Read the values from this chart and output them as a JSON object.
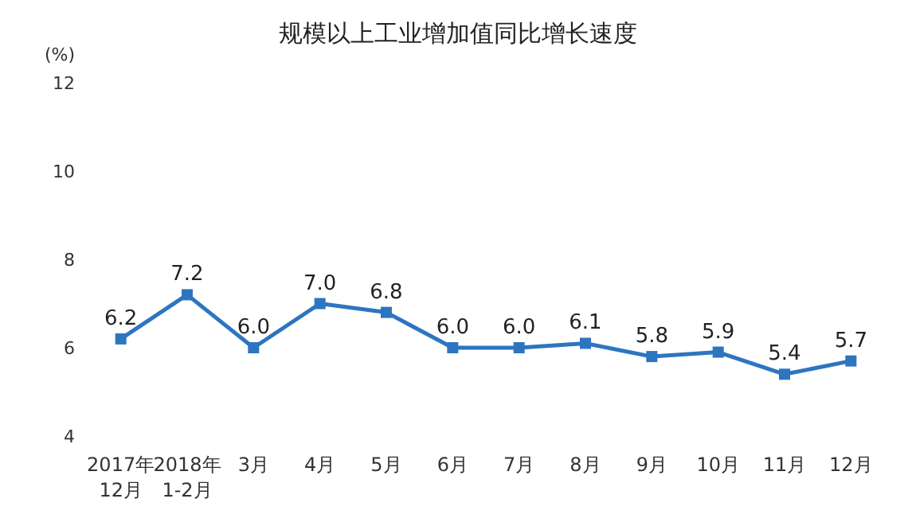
{
  "chart_data": {
    "type": "line",
    "title": "规模以上工业增加值同比增长速度",
    "ylabel": "(%)",
    "categories": [
      "2017年\n12月",
      "2018年\n1-2月",
      "3月",
      "4月",
      "5月",
      "6月",
      "7月",
      "8月",
      "9月",
      "10月",
      "11月",
      "12月"
    ],
    "series": [
      {
        "color": "#2e75c0",
        "values": [
          6.2,
          7.2,
          6.0,
          7.0,
          6.8,
          6.0,
          6.0,
          6.1,
          5.8,
          5.9,
          5.4,
          5.7
        ],
        "value_labels": [
          "6.2",
          "7.2",
          "6.0",
          "7.0",
          "6.8",
          "6.0",
          "6.0",
          "6.1",
          "5.8",
          "5.9",
          "5.4",
          "5.7"
        ]
      }
    ],
    "ylim": [
      4,
      12
    ],
    "yticks": [
      4,
      6,
      8,
      10,
      12
    ],
    "grid": false,
    "legend": false,
    "marker": "square",
    "line_style": "solid"
  }
}
